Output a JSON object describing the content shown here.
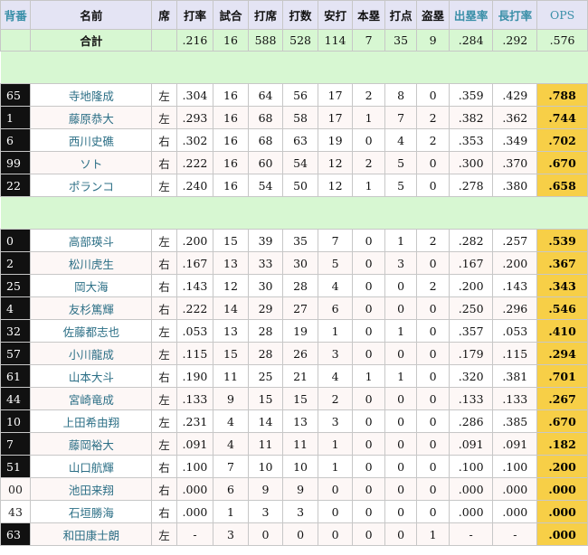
{
  "headers": [
    "背番",
    "名前",
    "席",
    "打率",
    "試合",
    "打席",
    "打数",
    "安打",
    "本塁",
    "打点",
    "盗塁",
    "出塁率",
    "長打率",
    "OPS"
  ],
  "total": {
    "label": "合計",
    "avg": ".216",
    "games": "16",
    "pa": "588",
    "ab": "528",
    "hits": "114",
    "hr": "7",
    "rbi": "35",
    "sb": "9",
    "obp": ".284",
    "slg": ".292",
    "ops": ".576"
  },
  "groups": [
    {
      "players": [
        {
          "no": "65",
          "name": "寺地隆成",
          "bats": "左",
          "avg": ".304",
          "games": "16",
          "pa": "64",
          "ab": "56",
          "hits": "17",
          "hr": "2",
          "rbi": "8",
          "sb": "0",
          "obp": ".359",
          "slg": ".429",
          "ops": ".788",
          "dark": true
        },
        {
          "no": "1",
          "name": "藤原恭大",
          "bats": "左",
          "avg": ".293",
          "games": "16",
          "pa": "68",
          "ab": "58",
          "hits": "17",
          "hr": "1",
          "rbi": "7",
          "sb": "2",
          "obp": ".382",
          "slg": ".362",
          "ops": ".744",
          "dark": true
        },
        {
          "no": "6",
          "name": "西川史礁",
          "bats": "右",
          "avg": ".302",
          "games": "16",
          "pa": "68",
          "ab": "63",
          "hits": "19",
          "hr": "0",
          "rbi": "4",
          "sb": "2",
          "obp": ".353",
          "slg": ".349",
          "ops": ".702",
          "dark": true
        },
        {
          "no": "99",
          "name": "ソト",
          "bats": "右",
          "avg": ".222",
          "games": "16",
          "pa": "60",
          "ab": "54",
          "hits": "12",
          "hr": "2",
          "rbi": "5",
          "sb": "0",
          "obp": ".300",
          "slg": ".370",
          "ops": ".670",
          "dark": true
        },
        {
          "no": "22",
          "name": "ポランコ",
          "bats": "左",
          "avg": ".240",
          "games": "16",
          "pa": "54",
          "ab": "50",
          "hits": "12",
          "hr": "1",
          "rbi": "5",
          "sb": "0",
          "obp": ".278",
          "slg": ".380",
          "ops": ".658",
          "dark": true
        }
      ]
    },
    {
      "players": [
        {
          "no": "0",
          "name": "高部瑛斗",
          "bats": "左",
          "avg": ".200",
          "games": "15",
          "pa": "39",
          "ab": "35",
          "hits": "7",
          "hr": "0",
          "rbi": "1",
          "sb": "2",
          "obp": ".282",
          "slg": ".257",
          "ops": ".539",
          "dark": true
        },
        {
          "no": "2",
          "name": "松川虎生",
          "bats": "右",
          "avg": ".167",
          "games": "13",
          "pa": "33",
          "ab": "30",
          "hits": "5",
          "hr": "0",
          "rbi": "3",
          "sb": "0",
          "obp": ".167",
          "slg": ".200",
          "ops": ".367",
          "dark": true
        },
        {
          "no": "25",
          "name": "岡大海",
          "bats": "右",
          "avg": ".143",
          "games": "12",
          "pa": "30",
          "ab": "28",
          "hits": "4",
          "hr": "0",
          "rbi": "0",
          "sb": "2",
          "obp": ".200",
          "slg": ".143",
          "ops": ".343",
          "dark": true
        },
        {
          "no": "4",
          "name": "友杉篤輝",
          "bats": "右",
          "avg": ".222",
          "games": "14",
          "pa": "29",
          "ab": "27",
          "hits": "6",
          "hr": "0",
          "rbi": "0",
          "sb": "0",
          "obp": ".250",
          "slg": ".296",
          "ops": ".546",
          "dark": true
        },
        {
          "no": "32",
          "name": "佐藤都志也",
          "bats": "左",
          "avg": ".053",
          "games": "13",
          "pa": "28",
          "ab": "19",
          "hits": "1",
          "hr": "0",
          "rbi": "1",
          "sb": "0",
          "obp": ".357",
          "slg": ".053",
          "ops": ".410",
          "dark": true
        },
        {
          "no": "57",
          "name": "小川龍成",
          "bats": "左",
          "avg": ".115",
          "games": "15",
          "pa": "28",
          "ab": "26",
          "hits": "3",
          "hr": "0",
          "rbi": "0",
          "sb": "0",
          "obp": ".179",
          "slg": ".115",
          "ops": ".294",
          "dark": true
        },
        {
          "no": "61",
          "name": "山本大斗",
          "bats": "右",
          "avg": ".190",
          "games": "11",
          "pa": "25",
          "ab": "21",
          "hits": "4",
          "hr": "1",
          "rbi": "1",
          "sb": "0",
          "obp": ".320",
          "slg": ".381",
          "ops": ".701",
          "dark": true
        },
        {
          "no": "44",
          "name": "宮崎竜成",
          "bats": "左",
          "avg": ".133",
          "games": "9",
          "pa": "15",
          "ab": "15",
          "hits": "2",
          "hr": "0",
          "rbi": "0",
          "sb": "0",
          "obp": ".133",
          "slg": ".133",
          "ops": ".267",
          "dark": true
        },
        {
          "no": "10",
          "name": "上田希由翔",
          "bats": "左",
          "avg": ".231",
          "games": "4",
          "pa": "14",
          "ab": "13",
          "hits": "3",
          "hr": "0",
          "rbi": "0",
          "sb": "0",
          "obp": ".286",
          "slg": ".385",
          "ops": ".670",
          "dark": true
        },
        {
          "no": "7",
          "name": "藤岡裕大",
          "bats": "左",
          "avg": ".091",
          "games": "4",
          "pa": "11",
          "ab": "11",
          "hits": "1",
          "hr": "0",
          "rbi": "0",
          "sb": "0",
          "obp": ".091",
          "slg": ".091",
          "ops": ".182",
          "dark": true
        },
        {
          "no": "51",
          "name": "山口航輝",
          "bats": "右",
          "avg": ".100",
          "games": "7",
          "pa": "10",
          "ab": "10",
          "hits": "1",
          "hr": "0",
          "rbi": "0",
          "sb": "0",
          "obp": ".100",
          "slg": ".100",
          "ops": ".200",
          "dark": true
        },
        {
          "no": "00",
          "name": "池田来翔",
          "bats": "右",
          "avg": ".000",
          "games": "6",
          "pa": "9",
          "ab": "9",
          "hits": "0",
          "hr": "0",
          "rbi": "0",
          "sb": "0",
          "obp": ".000",
          "slg": ".000",
          "ops": ".000",
          "dark": false
        },
        {
          "no": "43",
          "name": "石垣勝海",
          "bats": "右",
          "avg": ".000",
          "games": "1",
          "pa": "3",
          "ab": "3",
          "hits": "0",
          "hr": "0",
          "rbi": "0",
          "sb": "0",
          "obp": ".000",
          "slg": ".000",
          "ops": ".000",
          "dark": false
        },
        {
          "no": "63",
          "name": "和田康士朗",
          "bats": "左",
          "avg": "-",
          "games": "3",
          "pa": "0",
          "ab": "0",
          "hits": "0",
          "hr": "0",
          "rbi": "0",
          "sb": "1",
          "obp": "-",
          "slg": "-",
          "ops": ".000",
          "dark": true
        }
      ]
    }
  ],
  "colors": {
    "header_bg": "#e4e4f4",
    "total_bg": "#d7f7d2",
    "ops_highlight": "#f7cf47",
    "stat_header_accent": "#3a8fa8",
    "name_color": "#2c6f86"
  }
}
